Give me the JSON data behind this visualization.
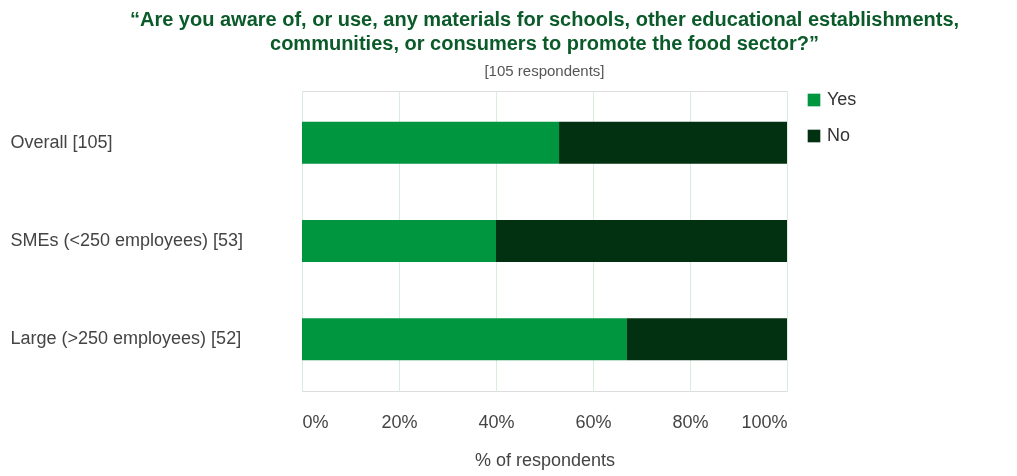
{
  "chart_data": {
    "type": "bar",
    "orientation": "horizontal",
    "stacked": true,
    "title": "“Are you aware of, or use, any materials for schools, other educational establishments, communities, or consumers to promote the food sector?”",
    "subtitle": "[105 respondents]",
    "xlabel": "% of respondents",
    "categories": [
      "Overall [105]",
      "SMEs (<250 employees) [53]",
      "Large (>250 employees) [52]"
    ],
    "series": [
      {
        "name": "Yes",
        "color": "#00953f",
        "values": [
          53,
          40,
          67
        ]
      },
      {
        "name": "No",
        "color": "#023112",
        "values": [
          47,
          60,
          33
        ]
      }
    ],
    "xlim": [
      0,
      100
    ],
    "xticks": [
      {
        "value": 0,
        "label": "0%"
      },
      {
        "value": 20,
        "label": "20%"
      },
      {
        "value": 40,
        "label": "40%"
      },
      {
        "value": 60,
        "label": "60%"
      },
      {
        "value": 80,
        "label": "80%"
      },
      {
        "value": 100,
        "label": "100%"
      }
    ],
    "grid": "x",
    "legend": "right"
  }
}
